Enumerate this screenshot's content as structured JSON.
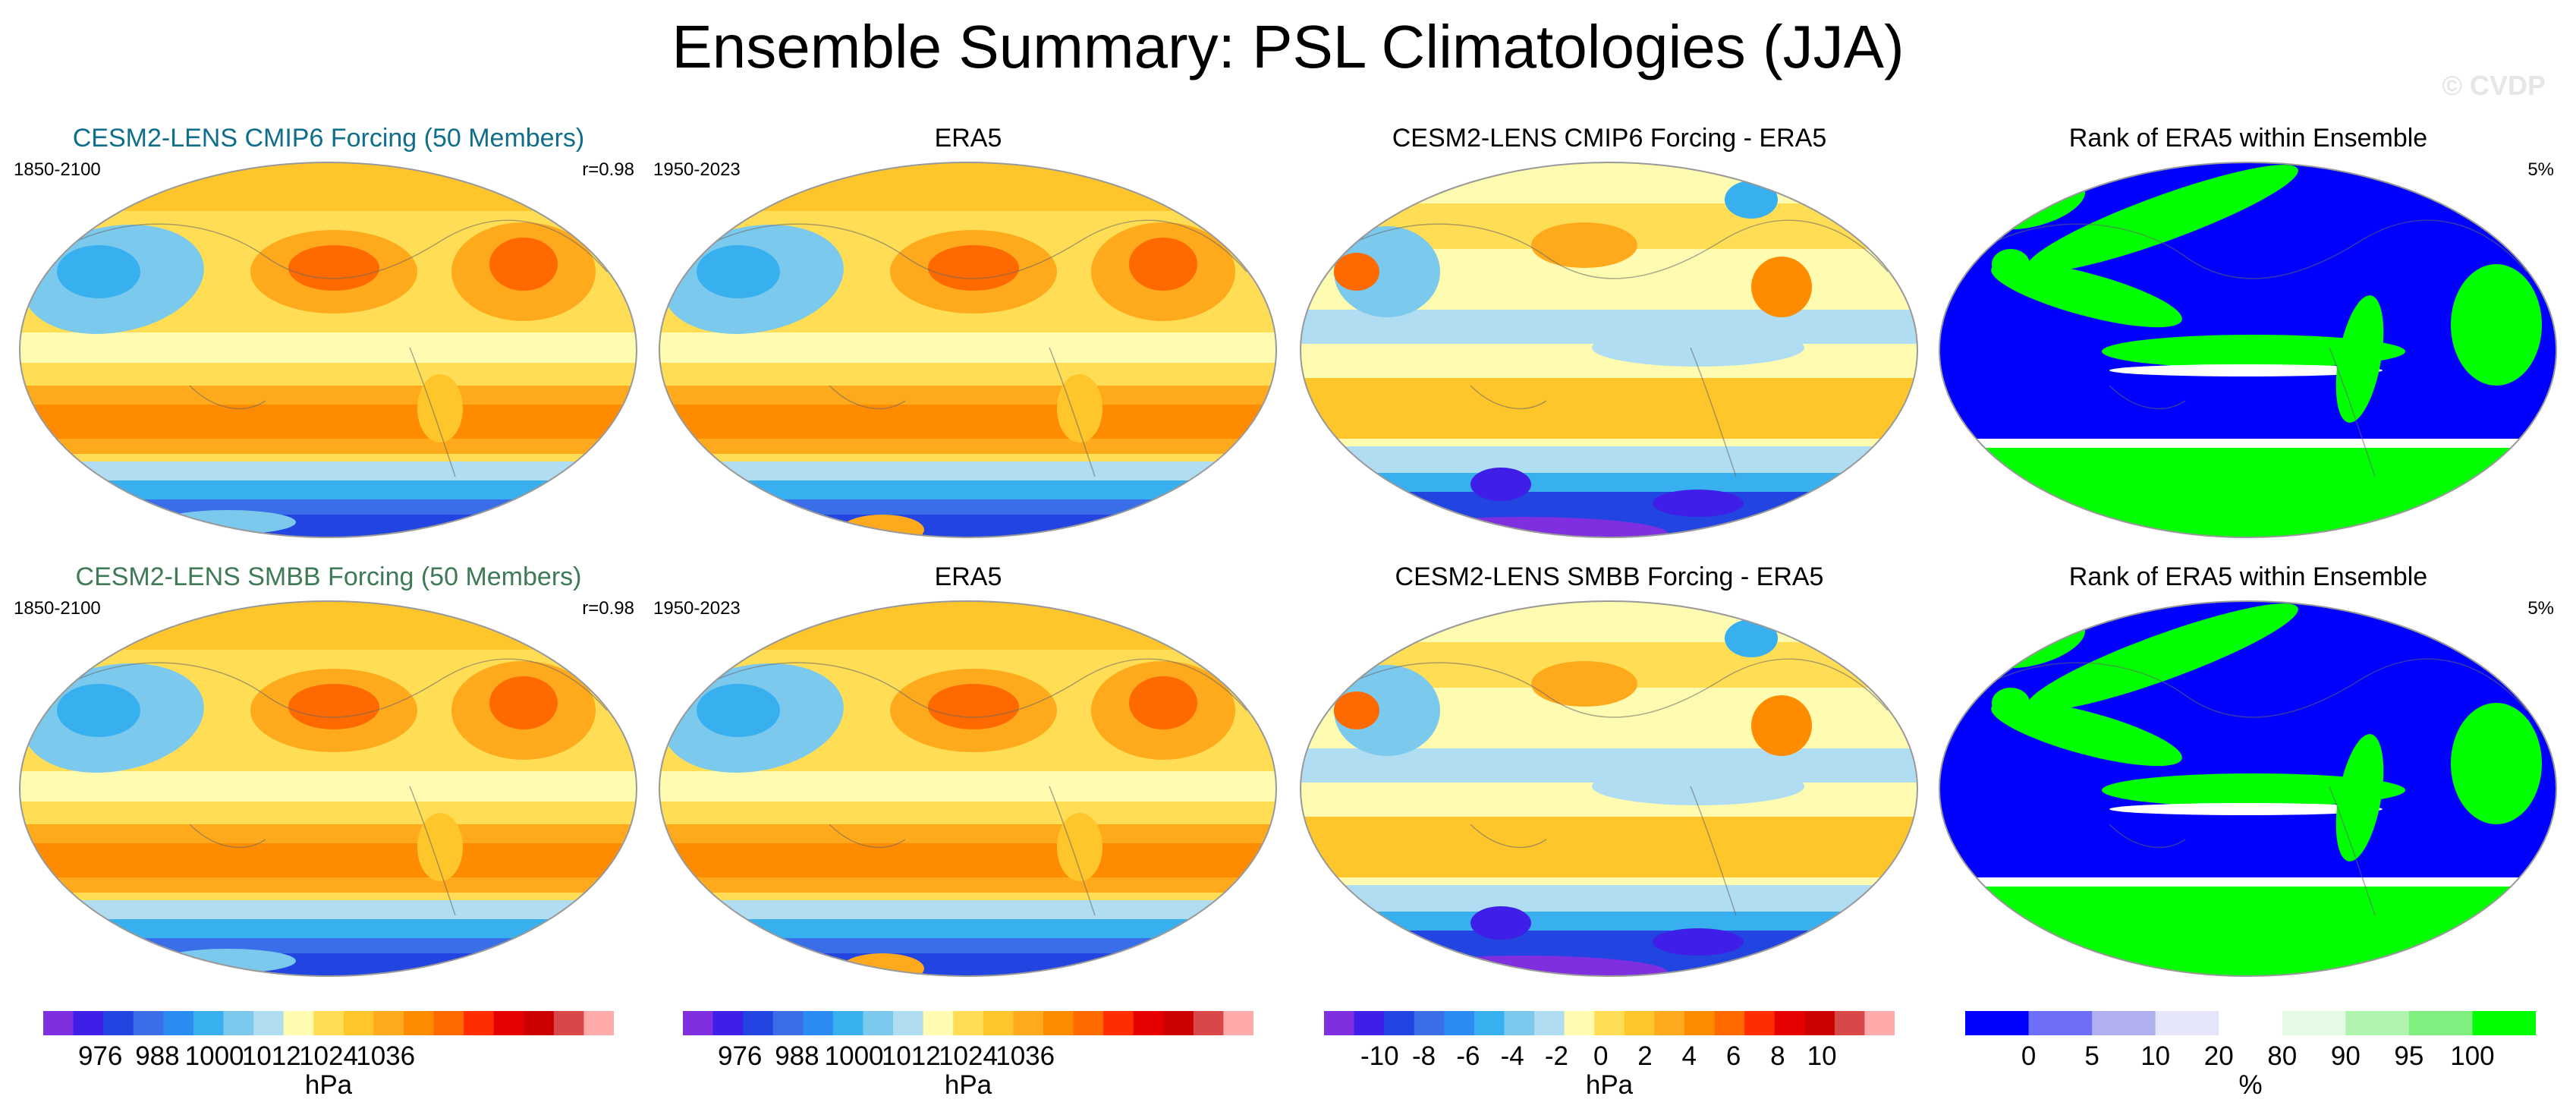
{
  "title": "Ensemble Summary: PSL Climatologies (JJA)",
  "watermark": "© CVDP",
  "colors": {
    "psl_scale": [
      "#7f2fe0",
      "#3f1fe8",
      "#2244e0",
      "#3a6ee8",
      "#2a8cf0",
      "#38b0ef",
      "#7cc9ee",
      "#b0ddf2",
      "#fffbb0",
      "#ffdd55",
      "#ffc62c",
      "#ffaa1c",
      "#ff8c00",
      "#ff6a00",
      "#ff2e00",
      "#e60000",
      "#cc0000",
      "#d84848",
      "#ffaaaa"
    ],
    "diff_scale": [
      "#7f2fe0",
      "#3f1fe8",
      "#2244e0",
      "#3a6ee8",
      "#2a8cf0",
      "#38b0ef",
      "#7cc9ee",
      "#b0ddf2",
      "#fffbb0",
      "#ffdd55",
      "#ffc62c",
      "#ffaa1c",
      "#ff8c00",
      "#ff6a00",
      "#ff2e00",
      "#e60000",
      "#cc0000",
      "#d84848",
      "#ffaaaa"
    ],
    "rank_scale": [
      "#0000ff",
      "#6e6ef8",
      "#b0b0f0",
      "#e6e6fa",
      "#ffffff",
      "#e6fae6",
      "#b0f4b0",
      "#7ff07f",
      "#00ff00"
    ],
    "model_title_row1": "#0e6e8c",
    "model_title_row2": "#3d7a55"
  },
  "rows": [
    {
      "panels": [
        {
          "kind": "model",
          "title": "CESM2-LENS CMIP6 Forcing (50 Members)",
          "left_label": "1850-2100",
          "right_label": "r=0.98"
        },
        {
          "kind": "obs",
          "title": "ERA5",
          "left_label": "1950-2023",
          "right_label": ""
        },
        {
          "kind": "diff",
          "title": "CESM2-LENS CMIP6 Forcing - ERA5",
          "left_label": "",
          "right_label": ""
        },
        {
          "kind": "rank",
          "title": "Rank of ERA5 within Ensemble",
          "left_label": "",
          "right_label": "5%"
        }
      ]
    },
    {
      "panels": [
        {
          "kind": "model",
          "title": "CESM2-LENS SMBB Forcing (50 Members)",
          "left_label": "1850-2100",
          "right_label": "r=0.98"
        },
        {
          "kind": "obs",
          "title": "ERA5",
          "left_label": "1950-2023",
          "right_label": ""
        },
        {
          "kind": "diff",
          "title": "CESM2-LENS SMBB Forcing - ERA5",
          "left_label": "",
          "right_label": ""
        },
        {
          "kind": "rank",
          "title": "Rank of ERA5 within Ensemble",
          "left_label": "",
          "right_label": "5%"
        }
      ]
    }
  ],
  "colorbars": [
    {
      "kind": "psl",
      "ticks": [
        "976",
        "988",
        "1000",
        "1012",
        "1024",
        "1036"
      ],
      "unit": "hPa"
    },
    {
      "kind": "psl",
      "ticks": [
        "976",
        "988",
        "1000",
        "1012",
        "1024",
        "1036"
      ],
      "unit": "hPa"
    },
    {
      "kind": "diff",
      "ticks": [
        "-10",
        "-8",
        "-6",
        "-4",
        "-2",
        "0",
        "2",
        "4",
        "6",
        "8",
        "10"
      ],
      "unit": "hPa"
    },
    {
      "kind": "rank",
      "ticks": [
        "0",
        "5",
        "10",
        "20",
        "80",
        "90",
        "95",
        "100"
      ],
      "unit": "%"
    }
  ]
}
